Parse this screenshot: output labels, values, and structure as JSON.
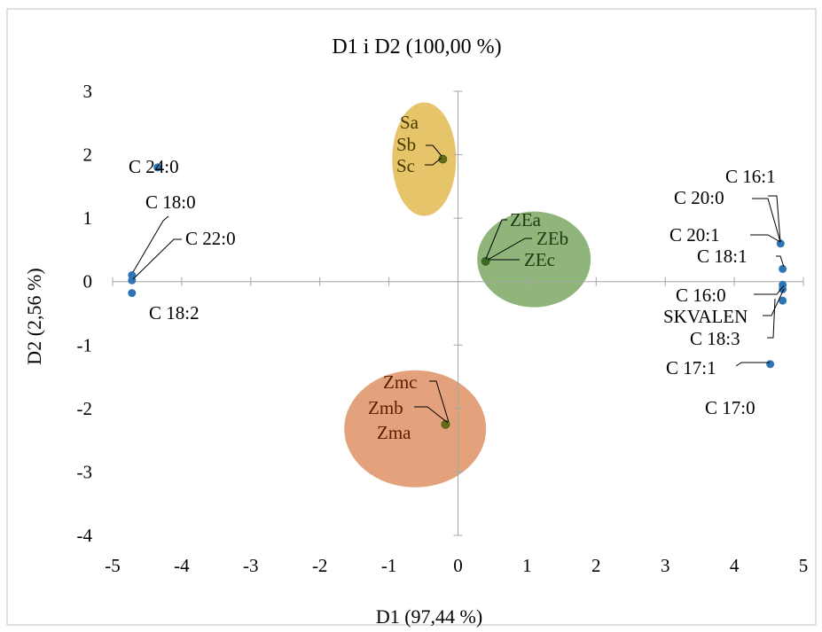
{
  "chart_data": {
    "type": "scatter",
    "title": "D1 i D2 (100,00 %)",
    "xlabel": "D1 (97,44 %)",
    "ylabel": "D2 (2,56 %)",
    "xlim": [
      -5,
      5
    ],
    "ylim": [
      -4,
      3
    ],
    "x_ticks": [
      "-5",
      "-4",
      "-3",
      "-2",
      "-1",
      "0",
      "1",
      "2",
      "3",
      "4",
      "5"
    ],
    "y_ticks": [
      "3",
      "2",
      "1",
      "0",
      "-1",
      "-2",
      "-3",
      "-4"
    ],
    "grid": false,
    "variables": {
      "color": "#2e75b6",
      "points": [
        {
          "label": "C 24:0",
          "x": -4.35,
          "y": 1.8
        },
        {
          "label": "C 18:0",
          "x": -4.72,
          "y": 0.1
        },
        {
          "label": "C 22:0",
          "x": -4.72,
          "y": 0.02
        },
        {
          "label": "C 18:2",
          "x": -4.72,
          "y": -0.18
        },
        {
          "label": "C 16:1",
          "x": 4.67,
          "y": 0.6
        },
        {
          "label": "C 20:0",
          "x": 4.67,
          "y": 0.6
        },
        {
          "label": "C 20:1",
          "x": 4.67,
          "y": 0.6
        },
        {
          "label": "C 18:1",
          "x": 4.7,
          "y": 0.2
        },
        {
          "label": "C 16:0",
          "x": 4.7,
          "y": -0.05
        },
        {
          "label": "SKVALEN",
          "x": 4.7,
          "y": -0.12
        },
        {
          "label": "C 18:3",
          "x": 4.7,
          "y": -0.3
        },
        {
          "label": "C 17:1",
          "x": 4.52,
          "y": -1.3
        },
        {
          "label": "C 17:0",
          "x": 4.52,
          "y": -1.3
        }
      ]
    },
    "groups": [
      {
        "labels": [
          "Sa",
          "Sb",
          "Sc"
        ],
        "x": -0.22,
        "y": 1.93,
        "fill": "#e6c46a",
        "point_color": "#6b6b10",
        "label_color": "#4a3a00"
      },
      {
        "labels": [
          "ZEa",
          "ZEb",
          "ZEc"
        ],
        "x": 0.4,
        "y": 0.32,
        "fill": "#8fb57a",
        "point_color": "#3a6a1e",
        "label_color": "#1e3a10"
      },
      {
        "labels": [
          "Zmc",
          "Zmb",
          "Zma"
        ],
        "x": -0.18,
        "y": -2.25,
        "fill": "#e3a17c",
        "point_color": "#6b6b10",
        "label_color": "#5a1e00"
      }
    ]
  }
}
